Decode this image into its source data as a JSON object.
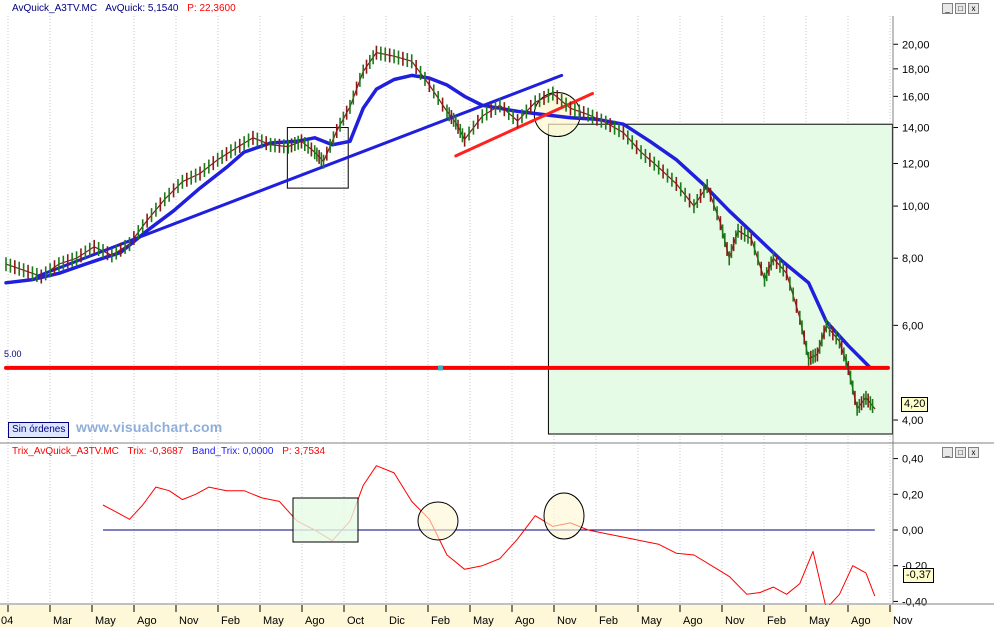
{
  "price_panel": {
    "header": {
      "symbol": "AvQuick_A3TV.MC",
      "indicator": "AvQuick: 5,1540",
      "price": "P: 22,3600"
    },
    "sin_ordenes": "Sin órdenes",
    "watermark": "www.visualchart.com",
    "level_label": "5.00",
    "last_price_tag": "4,20"
  },
  "trix_panel": {
    "header": {
      "name": "Trix_AvQuick_A3TV.MC",
      "trix": "Trix: -0,3687",
      "band": "Band_Trix: 0,0000",
      "price": "P: 3,7534"
    },
    "last_value_tag": "-0,37"
  },
  "window_buttons": {
    "minimize": "_",
    "maximize": "□",
    "close": "x"
  },
  "chart_data": [
    {
      "type": "line",
      "x": [
        "04",
        "Mar",
        "May",
        "Ago",
        "Nov",
        "Feb",
        "May",
        "Ago",
        "Oct",
        "Dic",
        "Feb",
        "May",
        "Ago",
        "Nov",
        "Feb",
        "May",
        "Ago",
        "Nov",
        "Feb",
        "May",
        "Ago",
        "Nov"
      ],
      "yscale": "log",
      "yticks": [
        "20,00",
        "18,00",
        "16,00",
        "14,00",
        "12,00",
        "10,00",
        "8,00",
        "6,00",
        "4,00"
      ],
      "ylim": [
        3.8,
        22
      ],
      "series": [
        {
          "color": "#1f1fdd",
          "points": [
            [
              0,
              7.2
            ],
            [
              0.03,
              7.3
            ],
            [
              0.06,
              7.5
            ],
            [
              0.09,
              7.8
            ],
            [
              0.11,
              8.0
            ],
            [
              0.13,
              8.2
            ],
            [
              0.16,
              9.0
            ],
            [
              0.19,
              9.8
            ],
            [
              0.22,
              10.8
            ],
            [
              0.25,
              11.8
            ],
            [
              0.27,
              12.6
            ],
            [
              0.3,
              13.1
            ],
            [
              0.33,
              13.2
            ],
            [
              0.35,
              13.4
            ],
            [
              0.37,
              13.0
            ],
            [
              0.39,
              13.2
            ],
            [
              0.405,
              15.2
            ],
            [
              0.42,
              16.5
            ],
            [
              0.44,
              17.2
            ],
            [
              0.46,
              17.5
            ],
            [
              0.48,
              17.3
            ],
            [
              0.5,
              16.8
            ],
            [
              0.52,
              16.0
            ],
            [
              0.54,
              15.4
            ],
            [
              0.56,
              15.2
            ],
            [
              0.58,
              15.0
            ],
            [
              0.61,
              14.8
            ],
            [
              0.64,
              14.6
            ],
            [
              0.67,
              14.5
            ],
            [
              0.7,
              14.2
            ],
            [
              0.73,
              13.2
            ],
            [
              0.76,
              12.2
            ],
            [
              0.79,
              11.0
            ],
            [
              0.82,
              9.8
            ],
            [
              0.85,
              8.8
            ],
            [
              0.88,
              7.9
            ],
            [
              0.91,
              7.2
            ],
            [
              0.93,
              6.1
            ],
            [
              0.955,
              5.5
            ],
            [
              0.98,
              5.0
            ]
          ]
        },
        {
          "color": "#8a1a1a",
          "points": [
            [
              0,
              7.8
            ],
            [
              0.02,
              7.6
            ],
            [
              0.04,
              7.4
            ],
            [
              0.06,
              7.8
            ],
            [
              0.08,
              8.0
            ],
            [
              0.1,
              8.4
            ],
            [
              0.12,
              8.1
            ],
            [
              0.14,
              8.5
            ],
            [
              0.16,
              9.4
            ],
            [
              0.18,
              10.3
            ],
            [
              0.2,
              11.1
            ],
            [
              0.22,
              11.5
            ],
            [
              0.24,
              12.2
            ],
            [
              0.26,
              12.8
            ],
            [
              0.28,
              13.4
            ],
            [
              0.3,
              13.0
            ],
            [
              0.32,
              12.9
            ],
            [
              0.335,
              13.2
            ],
            [
              0.35,
              12.6
            ],
            [
              0.36,
              12.1
            ],
            [
              0.375,
              13.8
            ],
            [
              0.39,
              15.3
            ],
            [
              0.405,
              17.8
            ],
            [
              0.42,
              19.3
            ],
            [
              0.44,
              19.0
            ],
            [
              0.46,
              18.6
            ],
            [
              0.48,
              16.8
            ],
            [
              0.5,
              15.0
            ],
            [
              0.51,
              14.3
            ],
            [
              0.52,
              13.3
            ],
            [
              0.54,
              14.7
            ],
            [
              0.56,
              15.4
            ],
            [
              0.58,
              14.4
            ],
            [
              0.6,
              15.6
            ],
            [
              0.62,
              16.2
            ],
            [
              0.64,
              15.2
            ],
            [
              0.66,
              14.8
            ],
            [
              0.68,
              14.3
            ],
            [
              0.7,
              13.7
            ],
            [
              0.72,
              12.6
            ],
            [
              0.74,
              11.8
            ],
            [
              0.76,
              11.0
            ],
            [
              0.78,
              10.0
            ],
            [
              0.795,
              10.9
            ],
            [
              0.81,
              9.3
            ],
            [
              0.82,
              8.0
            ],
            [
              0.83,
              9.0
            ],
            [
              0.845,
              8.7
            ],
            [
              0.86,
              7.3
            ],
            [
              0.87,
              8.0
            ],
            [
              0.885,
              7.5
            ],
            [
              0.9,
              6.2
            ],
            [
              0.91,
              5.2
            ],
            [
              0.92,
              5.3
            ],
            [
              0.93,
              6.0
            ],
            [
              0.945,
              5.6
            ],
            [
              0.955,
              5.0
            ],
            [
              0.965,
              4.2
            ],
            [
              0.975,
              4.4
            ],
            [
              0.985,
              4.2
            ]
          ]
        },
        {
          "color": "#1f1fdd",
          "points": [
            [
              0.035,
              7.4
            ],
            [
              0.63,
              17.5
            ]
          ]
        },
        {
          "color": "#ff2020",
          "points": [
            [
              0.51,
              12.4
            ],
            [
              0.665,
              16.2
            ]
          ]
        },
        {
          "color": "#ff0000",
          "points": [
            [
              0,
              5.0
            ],
            [
              1,
              5.0
            ]
          ]
        }
      ]
    },
    {
      "type": "line",
      "yticks": [
        "0,40",
        "0,20",
        "0,00",
        "-0,20",
        "-0,40"
      ],
      "ylim": [
        -0.42,
        0.42
      ],
      "series": [
        {
          "color": "#000080",
          "points": [
            [
              0.11,
              0.0
            ],
            [
              0.985,
              0.0
            ]
          ]
        },
        {
          "color": "#ff0000",
          "points": [
            [
              0.11,
              0.14
            ],
            [
              0.125,
              0.1
            ],
            [
              0.14,
              0.06
            ],
            [
              0.155,
              0.14
            ],
            [
              0.17,
              0.24
            ],
            [
              0.185,
              0.22
            ],
            [
              0.2,
              0.17
            ],
            [
              0.215,
              0.2
            ],
            [
              0.23,
              0.24
            ],
            [
              0.25,
              0.22
            ],
            [
              0.27,
              0.22
            ],
            [
              0.29,
              0.18
            ],
            [
              0.31,
              0.16
            ],
            [
              0.33,
              0.05
            ],
            [
              0.35,
              0.0
            ],
            [
              0.37,
              -0.06
            ],
            [
              0.39,
              0.05
            ],
            [
              0.405,
              0.25
            ],
            [
              0.42,
              0.36
            ],
            [
              0.44,
              0.32
            ],
            [
              0.46,
              0.16
            ],
            [
              0.48,
              0.06
            ],
            [
              0.5,
              -0.14
            ],
            [
              0.52,
              -0.22
            ],
            [
              0.54,
              -0.2
            ],
            [
              0.56,
              -0.16
            ],
            [
              0.58,
              -0.05
            ],
            [
              0.6,
              0.08
            ],
            [
              0.62,
              0.02
            ],
            [
              0.64,
              0.04
            ],
            [
              0.66,
              0.0
            ],
            [
              0.68,
              -0.02
            ],
            [
              0.7,
              -0.04
            ],
            [
              0.72,
              -0.06
            ],
            [
              0.74,
              -0.08
            ],
            [
              0.76,
              -0.13
            ],
            [
              0.78,
              -0.14
            ],
            [
              0.8,
              -0.2
            ],
            [
              0.82,
              -0.26
            ],
            [
              0.84,
              -0.36
            ],
            [
              0.855,
              -0.35
            ],
            [
              0.87,
              -0.32
            ],
            [
              0.885,
              -0.36
            ],
            [
              0.9,
              -0.3
            ],
            [
              0.915,
              -0.12
            ],
            [
              0.93,
              -0.44
            ],
            [
              0.945,
              -0.36
            ],
            [
              0.96,
              -0.2
            ],
            [
              0.975,
              -0.24
            ],
            [
              0.985,
              -0.37
            ]
          ]
        }
      ]
    }
  ]
}
